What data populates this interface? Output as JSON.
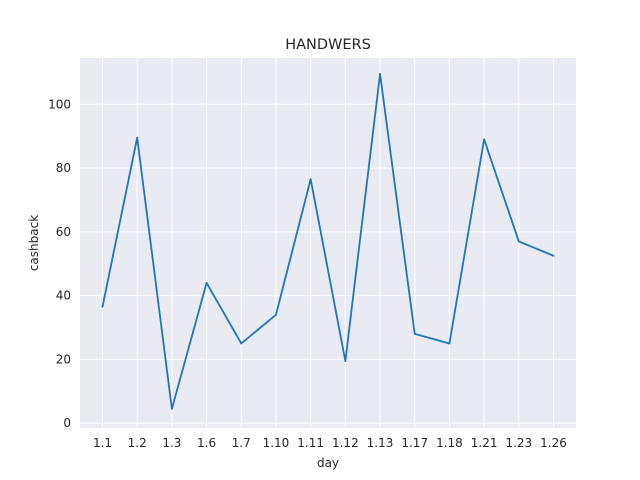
{
  "chart_data": {
    "type": "line",
    "title": "HANDWERS",
    "xlabel": "day",
    "ylabel": "cashback",
    "categories": [
      "1.1",
      "1.2",
      "1.3",
      "1.6",
      "1.7",
      "1.10",
      "1.11",
      "1.12",
      "1.13",
      "1.17",
      "1.18",
      "1.21",
      "1.23",
      "1.26"
    ],
    "series": [
      {
        "values": [
          36.5,
          89.5,
          4.5,
          44,
          25,
          34,
          76.5,
          19.5,
          109.5,
          28,
          25,
          89,
          57,
          52.5
        ]
      }
    ],
    "ylim": [
      -1.5,
      114.5
    ],
    "yticks": [
      0,
      20,
      40,
      60,
      80,
      100
    ],
    "grid": true,
    "colors": {
      "background": "#eaeaf2",
      "grid": "#ffffff",
      "line": "#1f77b4",
      "text": "#262626"
    }
  }
}
